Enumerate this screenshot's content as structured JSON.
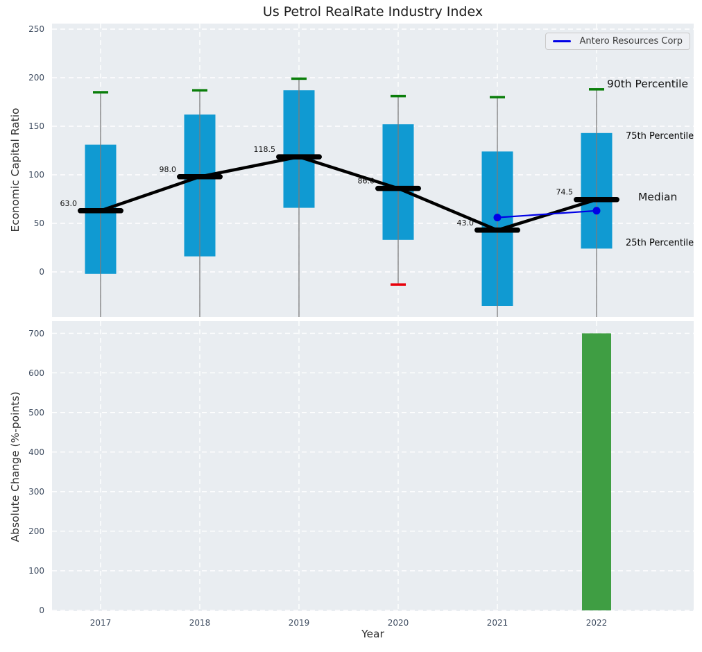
{
  "title": "Us Petrol RealRate Industry Index",
  "legend": {
    "label": "Antero Resources Corp"
  },
  "annotations": {
    "p90": "90th Percentile",
    "p75": "75th Percentile",
    "median": "Median",
    "p25": "25th Percentile"
  },
  "colors": {
    "panel_background": "#e9edf1",
    "grid": "#ffffff",
    "box": "#109ad2",
    "median_bar": "#000000",
    "median_line": "#000000",
    "whisker": "#7b7b7b",
    "p90_cap": "#0a7e0a",
    "p10_cap": "#e8000b",
    "company_line": "#0000e6",
    "bar": "#3f9e43",
    "tick_text": "#3d4b5f",
    "annotation_blue": "#1aa0dc",
    "annotation_black": "#111111"
  },
  "chart_data": [
    {
      "type": "boxplot",
      "title": "Us Petrol RealRate Industry Index",
      "ylabel": "Economic Capital Ratio",
      "ylim": [
        -46,
        256
      ],
      "yticks": [
        0,
        50,
        100,
        150,
        200,
        250
      ],
      "grid": true,
      "legend_position": "upper right",
      "categories": [
        "2017",
        "2018",
        "2019",
        "2020",
        "2021",
        "2022"
      ],
      "boxes": [
        {
          "year": "2017",
          "p90": 185,
          "q3": 131,
          "median": 63.0,
          "q1": -2,
          "p10": null
        },
        {
          "year": "2018",
          "p90": 187,
          "q3": 162,
          "median": 98.0,
          "q1": 16,
          "p10": null
        },
        {
          "year": "2019",
          "p90": 199,
          "q3": 187,
          "median": 118.5,
          "q1": 66,
          "p10": null
        },
        {
          "year": "2020",
          "p90": 181,
          "q3": 152,
          "median": 86.0,
          "q1": 33,
          "p10": -13
        },
        {
          "year": "2021",
          "p90": 180,
          "q3": 124,
          "median": 43.0,
          "q1": -35,
          "p10": null
        },
        {
          "year": "2022",
          "p90": 188,
          "q3": 143,
          "median": 74.5,
          "q1": 24,
          "p10": null
        }
      ],
      "median_labels": [
        "63.0",
        "98.0",
        "118.5",
        "86.0",
        "43.0",
        "74.5"
      ],
      "series": [
        {
          "name": "Antero Resources Corp",
          "points": [
            {
              "year": "2021",
              "value": 56
            },
            {
              "year": "2022",
              "value": 63
            }
          ]
        }
      ]
    },
    {
      "type": "bar",
      "ylabel": "Absolute Change (%-points)",
      "xlabel": "Year",
      "ylim": [
        0,
        731
      ],
      "yticks": [
        0,
        100,
        200,
        300,
        400,
        500,
        600,
        700
      ],
      "grid": true,
      "categories": [
        "2017",
        "2018",
        "2019",
        "2020",
        "2021",
        "2022"
      ],
      "values": [
        null,
        null,
        null,
        null,
        null,
        700
      ]
    }
  ]
}
